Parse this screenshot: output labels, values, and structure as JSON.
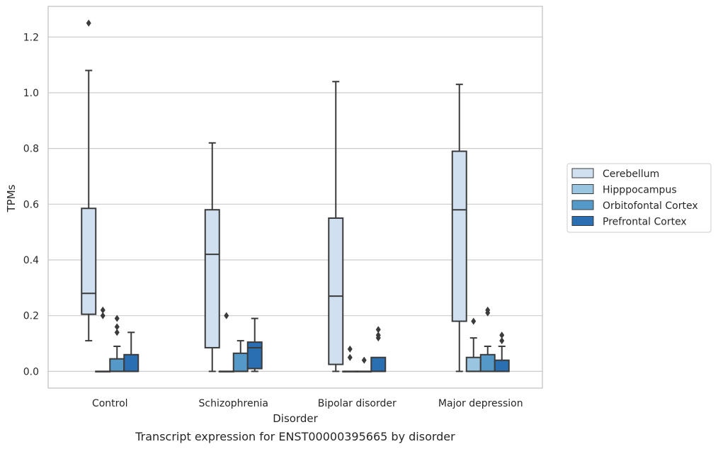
{
  "caption": "Transcript expression for ENST00000395665 by disorder",
  "chart_data": {
    "type": "box",
    "xlabel": "Disorder",
    "ylabel": "TPMs",
    "ylim": [
      -0.06,
      1.31
    ],
    "yticks": [
      0.0,
      0.2,
      0.4,
      0.6,
      0.8,
      1.0,
      1.2
    ],
    "ytick_labels": [
      "0.0",
      "0.2",
      "0.4",
      "0.6",
      "0.8",
      "1.0",
      "1.2"
    ],
    "grid": true,
    "legend_position": "right",
    "categories": [
      "Control",
      "Schizophrenia",
      "Bipolar disorder",
      "Major depression"
    ],
    "series": [
      {
        "name": "Cerebellum",
        "color": "#d0e0f0",
        "boxes": [
          {
            "whislo": 0.11,
            "q1": 0.205,
            "med": 0.28,
            "q3": 0.585,
            "whishi": 1.08,
            "fliers": [
              1.25
            ]
          },
          {
            "whislo": 0.0,
            "q1": 0.085,
            "med": 0.42,
            "q3": 0.58,
            "whishi": 0.82,
            "fliers": []
          },
          {
            "whislo": 0.0,
            "q1": 0.025,
            "med": 0.27,
            "q3": 0.55,
            "whishi": 1.04,
            "fliers": []
          },
          {
            "whislo": 0.0,
            "q1": 0.18,
            "med": 0.58,
            "q3": 0.79,
            "whishi": 1.03,
            "fliers": []
          }
        ]
      },
      {
        "name": "Hipppocampus",
        "color": "#9ac5e0",
        "boxes": [
          {
            "whislo": 0.0,
            "q1": 0.0,
            "med": 0.0,
            "q3": 0.0,
            "whishi": 0.0,
            "fliers": [
              0.2,
              0.22
            ]
          },
          {
            "whislo": 0.0,
            "q1": 0.0,
            "med": 0.0,
            "q3": 0.0,
            "whishi": 0.0,
            "fliers": [
              0.2
            ]
          },
          {
            "whislo": 0.0,
            "q1": 0.0,
            "med": 0.0,
            "q3": 0.0,
            "whishi": 0.0,
            "fliers": [
              0.05,
              0.08
            ]
          },
          {
            "whislo": 0.0,
            "q1": 0.0,
            "med": 0.0,
            "q3": 0.05,
            "whishi": 0.12,
            "fliers": [
              0.18
            ]
          }
        ]
      },
      {
        "name": "Orbitofontal Cortex",
        "color": "#5599c8",
        "boxes": [
          {
            "whislo": 0.0,
            "q1": 0.0,
            "med": 0.0,
            "q3": 0.045,
            "whishi": 0.09,
            "fliers": [
              0.14,
              0.16,
              0.19
            ]
          },
          {
            "whislo": 0.0,
            "q1": 0.0,
            "med": 0.0,
            "q3": 0.065,
            "whishi": 0.11,
            "fliers": []
          },
          {
            "whislo": 0.0,
            "q1": 0.0,
            "med": 0.0,
            "q3": 0.0,
            "whishi": 0.0,
            "fliers": [
              0.04
            ]
          },
          {
            "whislo": 0.0,
            "q1": 0.0,
            "med": 0.0,
            "q3": 0.06,
            "whishi": 0.09,
            "fliers": [
              0.21,
              0.22
            ]
          }
        ]
      },
      {
        "name": "Prefrontal Cortex",
        "color": "#2a6fb2",
        "boxes": [
          {
            "whislo": 0.0,
            "q1": 0.0,
            "med": 0.0,
            "q3": 0.06,
            "whishi": 0.14,
            "fliers": []
          },
          {
            "whislo": 0.0,
            "q1": 0.01,
            "med": 0.085,
            "q3": 0.105,
            "whishi": 0.19,
            "fliers": []
          },
          {
            "whislo": 0.0,
            "q1": 0.0,
            "med": 0.0,
            "q3": 0.05,
            "whishi": 0.05,
            "fliers": [
              0.12,
              0.13,
              0.15
            ]
          },
          {
            "whislo": 0.0,
            "q1": 0.0,
            "med": 0.0,
            "q3": 0.04,
            "whishi": 0.09,
            "fliers": [
              0.11,
              0.13
            ]
          }
        ]
      }
    ]
  }
}
